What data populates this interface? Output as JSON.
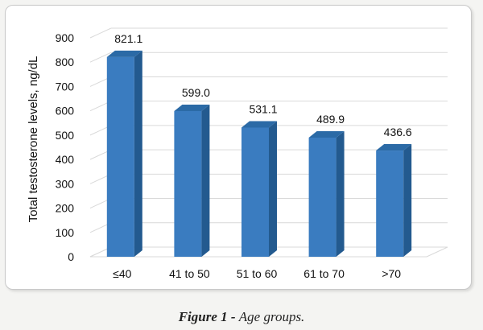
{
  "chart_data": {
    "type": "bar",
    "categories": [
      "≤40",
      "41 to 50",
      "51 to 60",
      "61 to 70",
      ">70"
    ],
    "values": [
      821.1,
      599.0,
      531.1,
      489.9,
      436.6
    ],
    "value_labels": [
      "821.1",
      "599.0",
      "531.1",
      "489.9",
      "436.6"
    ],
    "ylabel": "Total testosterone levels, ng/dL",
    "xlabel": "",
    "ylim": [
      0,
      900
    ],
    "yticks": [
      0,
      100,
      200,
      300,
      400,
      500,
      600,
      700,
      800,
      900
    ],
    "grid": true,
    "style": "3d-column",
    "colors": {
      "bar_front": "#3a7cc0",
      "bar_side": "#235a8f",
      "bar_top": "#2b6aa6",
      "grid": "#d9d9d9"
    }
  },
  "caption": {
    "label": "Figure 1 -",
    "text": "Age groups."
  }
}
